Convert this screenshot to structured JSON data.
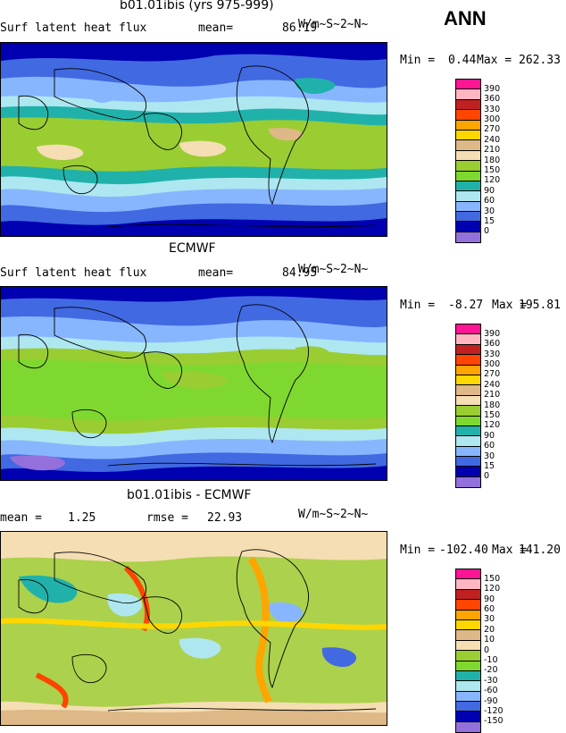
{
  "page_title": "ANN",
  "panels": [
    {
      "title": "b01.01ibis (yrs 975-999)",
      "left_label": "Surf latent heat flux",
      "stat_label": "mean=",
      "stat_value": "86.19",
      "stat2_label": "",
      "stat2_value": "",
      "units": "W/m~S~2~N~",
      "min_label": "Min =",
      "min_value": "0.44",
      "max_label": "Max =",
      "max_value": "262.33",
      "legend_levels": [
        "390",
        "360",
        "330",
        "300",
        "270",
        "240",
        "210",
        "180",
        "150",
        "120",
        "90",
        "60",
        "30",
        "15",
        "0"
      ],
      "legend_colors": [
        "#ff1493",
        "#ffb6c1",
        "#c02020",
        "#ff4500",
        "#ffa500",
        "#ffd700",
        "#deb887",
        "#f5deb3",
        "#9acd32",
        "#7fd82f",
        "#20b2aa",
        "#aee7f0",
        "#87b6ff",
        "#4169e1",
        "#0000b0",
        "#9370db"
      ]
    },
    {
      "title": "ECMWF",
      "left_label": "Surf latent heat flux",
      "stat_label": "mean=",
      "stat_value": "84.95",
      "stat2_label": "",
      "stat2_value": "",
      "units": "W/m~S~2~N~",
      "min_label": "Min =",
      "min_value": "-8.27",
      "max_label": "Max =",
      "max_value": "195.81",
      "legend_levels": [
        "390",
        "360",
        "330",
        "300",
        "270",
        "240",
        "210",
        "180",
        "150",
        "120",
        "90",
        "60",
        "30",
        "15",
        "0"
      ],
      "legend_colors": [
        "#ff1493",
        "#ffb6c1",
        "#c02020",
        "#ff4500",
        "#ffa500",
        "#ffd700",
        "#deb887",
        "#f5deb3",
        "#9acd32",
        "#7fd82f",
        "#20b2aa",
        "#aee7f0",
        "#87b6ff",
        "#4169e1",
        "#0000b0",
        "#9370db"
      ]
    },
    {
      "title": "b01.01ibis - ECMWF",
      "left_label": "mean =",
      "stat_label": "",
      "stat_value": "1.25",
      "stat2_label": "rmse =",
      "stat2_value": "22.93",
      "units": "W/m~S~2~N~",
      "min_label": "Min =",
      "min_value": "-102.40",
      "max_label": "Max =",
      "max_value": "141.20",
      "legend_levels": [
        "150",
        "120",
        "90",
        "60",
        "30",
        "20",
        "10",
        "0",
        "-10",
        "-20",
        "-30",
        "-60",
        "-90",
        "-120",
        "-150"
      ],
      "legend_colors": [
        "#ff1493",
        "#ffb6c1",
        "#c02020",
        "#ff4500",
        "#ffa500",
        "#ffd700",
        "#deb887",
        "#f5deb3",
        "#9acd32",
        "#7fd82f",
        "#20b2aa",
        "#aee7f0",
        "#87b6ff",
        "#4169e1",
        "#0000b0",
        "#9370db"
      ]
    }
  ]
}
